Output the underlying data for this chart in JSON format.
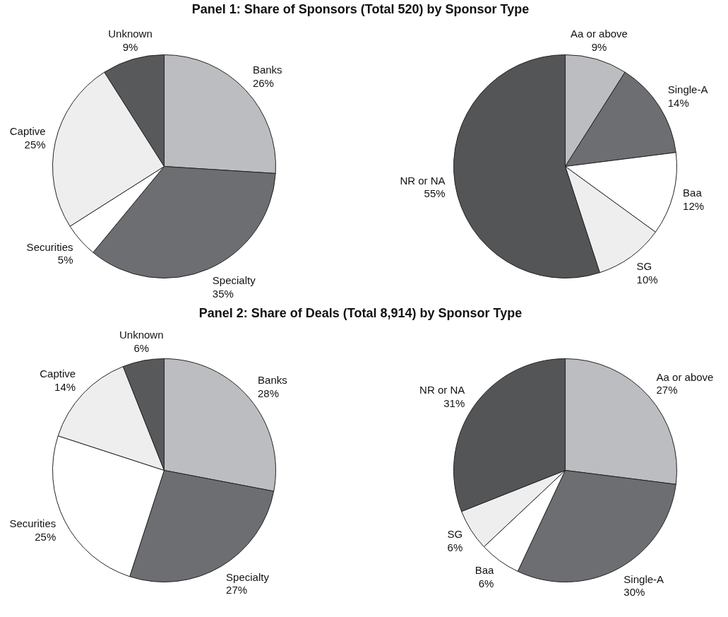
{
  "chart_data": [
    {
      "type": "pie",
      "title": "Panel 1: Share of Sponsors (Total 520) by Sponsor Type",
      "categories": [
        "Banks",
        "Specialty",
        "Securities",
        "Captive",
        "Unknown"
      ],
      "values": [
        26,
        35,
        5,
        25,
        9
      ],
      "value_labels": [
        "26%",
        "35%",
        "5%",
        "25%",
        "9%"
      ],
      "colors": [
        "#bcbdc0",
        "#6d6e71",
        "#ffffff",
        "#eeeeef",
        "#58595b"
      ]
    },
    {
      "type": "pie",
      "categories": [
        "Aa or above",
        "Single-A",
        "Baa",
        "SG",
        "NR or NA"
      ],
      "values": [
        9,
        14,
        12,
        10,
        55
      ],
      "value_labels": [
        "9%",
        "14%",
        "12%",
        "10%",
        "55%"
      ],
      "colors": [
        "#bcbdc0",
        "#6d6e71",
        "#ffffff",
        "#eeeeef",
        "#545557"
      ]
    },
    {
      "type": "pie",
      "title": "Panel 2: Share of Deals (Total 8,914) by Sponsor Type",
      "categories": [
        "Banks",
        "Specialty",
        "Securities",
        "Captive",
        "Unknown"
      ],
      "values": [
        28,
        27,
        25,
        14,
        6
      ],
      "value_labels": [
        "28%",
        "27%",
        "25%",
        "14%",
        "6%"
      ],
      "colors": [
        "#bcbdc0",
        "#6d6e71",
        "#ffffff",
        "#eeeeef",
        "#58595b"
      ]
    },
    {
      "type": "pie",
      "categories": [
        "Aa or above",
        "Single-A",
        "Baa",
        "SG",
        "NR or NA"
      ],
      "values": [
        27,
        30,
        6,
        6,
        31
      ],
      "value_labels": [
        "27%",
        "30%",
        "6%",
        "6%",
        "31%"
      ],
      "colors": [
        "#bcbdc0",
        "#6d6e71",
        "#ffffff",
        "#eeeeef",
        "#545557"
      ]
    }
  ]
}
